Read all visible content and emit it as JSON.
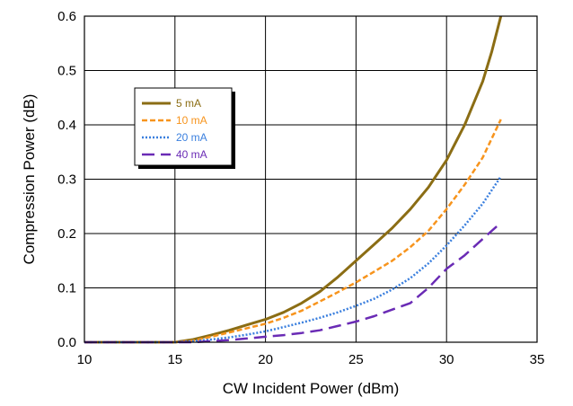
{
  "chart_data": {
    "type": "line",
    "title": "",
    "xlabel": "CW Incident Power (dBm)",
    "ylabel": "Compression Power (dB)",
    "xlim": [
      10,
      35
    ],
    "ylim": [
      0,
      0.6
    ],
    "xticks": [
      "10",
      "15",
      "20",
      "25",
      "30",
      "35"
    ],
    "yticks": [
      "0.0",
      "0.1",
      "0.2",
      "0.3",
      "0.4",
      "0.5",
      "0.6"
    ],
    "xtick_values": [
      10,
      15,
      20,
      25,
      30,
      35
    ],
    "ytick_values": [
      0,
      0.1,
      0.2,
      0.3,
      0.4,
      0.5,
      0.6
    ],
    "grid": true,
    "legend_position": "upper-left",
    "series": [
      {
        "name": "5 mA",
        "color": "#8B6D14",
        "dash": "solid",
        "x": [
          10,
          15,
          16,
          17,
          18,
          19,
          20,
          21,
          22,
          23,
          24,
          25,
          26,
          27,
          28,
          29,
          30,
          31,
          32,
          32.5,
          33
        ],
        "y": [
          0,
          0,
          0.005,
          0.013,
          0.022,
          0.032,
          0.042,
          0.055,
          0.072,
          0.093,
          0.12,
          0.15,
          0.18,
          0.21,
          0.245,
          0.285,
          0.335,
          0.4,
          0.48,
          0.535,
          0.6
        ]
      },
      {
        "name": "10 mA",
        "color": "#F7941D",
        "dash": "dashed",
        "x": [
          10,
          15,
          16,
          17,
          18,
          19,
          20,
          21,
          22,
          23,
          24,
          25,
          26,
          27,
          28,
          29,
          30,
          31,
          32,
          33
        ],
        "y": [
          0,
          0,
          0.003,
          0.01,
          0.018,
          0.026,
          0.034,
          0.045,
          0.058,
          0.075,
          0.092,
          0.11,
          0.13,
          0.15,
          0.175,
          0.205,
          0.245,
          0.29,
          0.34,
          0.41
        ]
      },
      {
        "name": "20 mA",
        "color": "#3A7FDE",
        "dash": "dotted",
        "x": [
          10,
          15,
          16,
          17,
          18,
          19,
          20,
          21,
          22,
          23,
          24,
          25,
          26,
          27,
          28,
          29,
          30,
          31,
          32,
          33
        ],
        "y": [
          0,
          0,
          0.002,
          0.005,
          0.009,
          0.014,
          0.02,
          0.028,
          0.036,
          0.045,
          0.055,
          0.067,
          0.08,
          0.097,
          0.118,
          0.145,
          0.178,
          0.215,
          0.255,
          0.305
        ]
      },
      {
        "name": "40 mA",
        "color": "#6A2BB5",
        "dash": "long-dash",
        "x": [
          10,
          15,
          16,
          17,
          18,
          19,
          20,
          21,
          22,
          23,
          24,
          25,
          26,
          27,
          28,
          29,
          30,
          31,
          32,
          33
        ],
        "y": [
          0,
          0,
          0,
          0.002,
          0.004,
          0.007,
          0.01,
          0.013,
          0.017,
          0.022,
          0.03,
          0.038,
          0.048,
          0.06,
          0.072,
          0.1,
          0.135,
          0.16,
          0.19,
          0.22
        ]
      }
    ]
  }
}
